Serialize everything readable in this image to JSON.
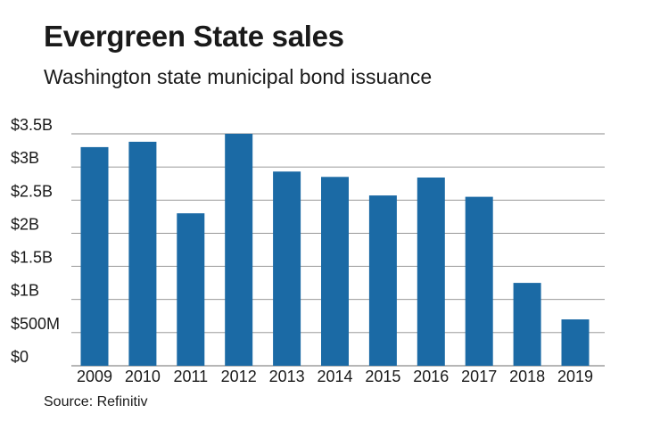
{
  "title": "Evergreen State sales",
  "subtitle": "Washington state municipal bond issuance",
  "source": "Source: Refinitiv",
  "colors": {
    "bar": "#1b6aa5",
    "grid": "#8a8a8a"
  },
  "chart_data": {
    "type": "bar",
    "title": "Evergreen State sales",
    "subtitle": "Washington state municipal bond issuance",
    "xlabel": "",
    "ylabel": "",
    "categories": [
      "2009",
      "2010",
      "2011",
      "2012",
      "2013",
      "2014",
      "2015",
      "2016",
      "2017",
      "2018",
      "2019"
    ],
    "values": [
      3.3,
      3.38,
      2.3,
      3.5,
      2.93,
      2.85,
      2.57,
      2.84,
      2.55,
      1.25,
      0.7
    ],
    "units": "billions of dollars",
    "ylim": [
      0,
      3.5
    ],
    "yticks": [
      0,
      0.5,
      1,
      1.5,
      2,
      2.5,
      3,
      3.5
    ],
    "ytick_labels": [
      "$0",
      "$500M",
      "$1B",
      "$1.5B",
      "$2B",
      "$2.5B",
      "$3B",
      "$3.5B"
    ],
    "grid": true,
    "legend": "none"
  }
}
